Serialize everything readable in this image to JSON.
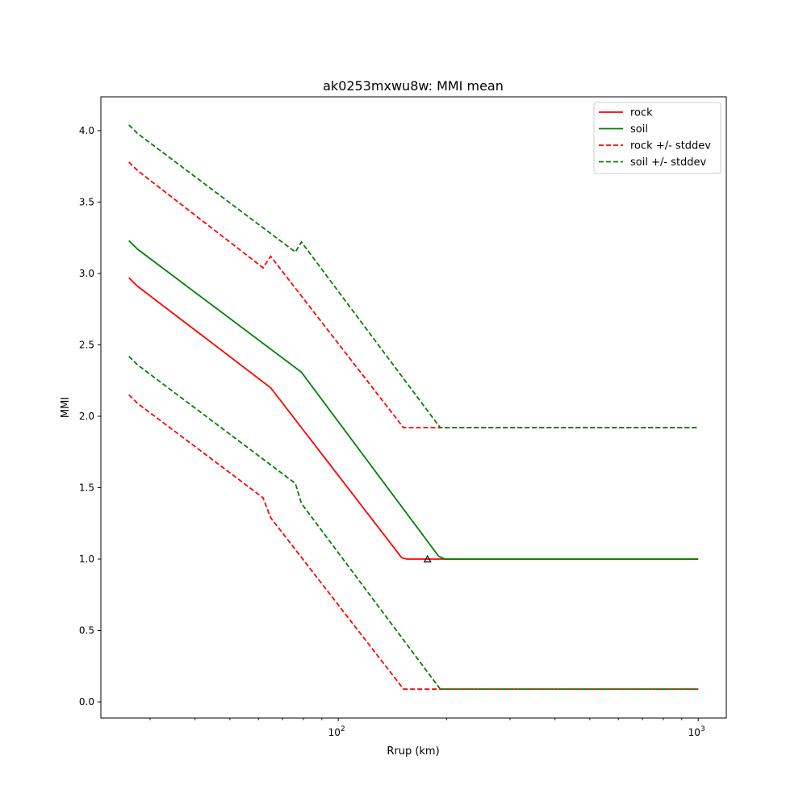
{
  "chart_data": {
    "type": "line",
    "title": "ak0253mxwu8w: MMI mean",
    "xlabel": "Rrup (km)",
    "ylabel": "MMI",
    "xscale": "log",
    "xlim": [
      21.9,
      1197
    ],
    "ylim": [
      -0.113,
      4.237
    ],
    "grid": false,
    "legend_position": "top-right",
    "x_ticks": [
      {
        "value": 100,
        "base": "10",
        "exp": "2"
      },
      {
        "value": 1000,
        "base": "10",
        "exp": "3"
      }
    ],
    "y_ticks": [
      {
        "value": 0,
        "label": "0.0"
      },
      {
        "value": 0.5,
        "label": "0.5"
      },
      {
        "value": 1,
        "label": "1.0"
      },
      {
        "value": 1.5,
        "label": "1.5"
      },
      {
        "value": 2,
        "label": "2.0"
      },
      {
        "value": 2.5,
        "label": "2.5"
      },
      {
        "value": 3,
        "label": "3.0"
      },
      {
        "value": 3.5,
        "label": "3.5"
      },
      {
        "value": 4,
        "label": "4.0"
      }
    ],
    "series": [
      {
        "name": "rock",
        "color": "#ff0000",
        "dashed": false,
        "legend": true,
        "points": [
          [
            26.2,
            2.97
          ],
          [
            27.7,
            2.91
          ],
          [
            64.9,
            2.2
          ],
          [
            150,
            1.01
          ],
          [
            155,
            1.0
          ],
          [
            1000,
            1.0
          ]
        ]
      },
      {
        "name": "soil",
        "color": "#008000",
        "dashed": false,
        "legend": true,
        "points": [
          [
            26.2,
            3.23
          ],
          [
            27.7,
            3.17
          ],
          [
            78.9,
            2.31
          ],
          [
            190,
            1.02
          ],
          [
            198,
            1.0
          ],
          [
            1000,
            1.0
          ]
        ]
      },
      {
        "name": "rock +/- stddev",
        "color": "#ff0000",
        "dashed": true,
        "legend": true,
        "points": [
          [
            26.2,
            3.78
          ],
          [
            27.7,
            3.72
          ],
          [
            61.8,
            3.04
          ],
          [
            64.9,
            3.12
          ],
          [
            151.8,
            1.92
          ],
          [
            1000,
            1.92
          ]
        ]
      },
      {
        "name": "rock - stddev",
        "color": "#ff0000",
        "dashed": true,
        "legend": false,
        "points": [
          [
            26.2,
            2.15
          ],
          [
            27.7,
            2.09
          ],
          [
            61.8,
            1.43
          ],
          [
            64.9,
            1.29
          ],
          [
            151.8,
            0.09
          ],
          [
            1000,
            0.09
          ]
        ]
      },
      {
        "name": "soil +/- stddev",
        "color": "#008000",
        "dashed": true,
        "legend": true,
        "points": [
          [
            26.2,
            4.04
          ],
          [
            27.7,
            3.98
          ],
          [
            76,
            3.15
          ],
          [
            79,
            3.22
          ],
          [
            192,
            1.92
          ],
          [
            1000,
            1.92
          ]
        ]
      },
      {
        "name": "soil - stddev",
        "color": "#008000",
        "dashed": true,
        "legend": false,
        "points": [
          [
            26.2,
            2.42
          ],
          [
            27.7,
            2.36
          ],
          [
            76,
            1.53
          ],
          [
            79,
            1.39
          ],
          [
            192,
            0.09
          ],
          [
            1000,
            0.09
          ]
        ]
      }
    ],
    "markers": [
      {
        "shape": "triangle",
        "x": 177,
        "y": 1.0,
        "color": "#000000"
      }
    ]
  }
}
